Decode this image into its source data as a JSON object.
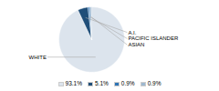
{
  "chart_data": {
    "type": "pie",
    "categories": [
      "WHITE",
      "A.I.",
      "PACIFIC ISLANDER",
      "ASIAN"
    ],
    "values": [
      93.1,
      5.1,
      0.9,
      0.9
    ],
    "value_labels": [
      "93.1%",
      "5.1%",
      "0.9%",
      "0.9%"
    ],
    "colors": [
      "#dce4ed",
      "#1f4e79",
      "#2e74b5",
      "#9eb8d0"
    ],
    "legend": "bottom"
  }
}
